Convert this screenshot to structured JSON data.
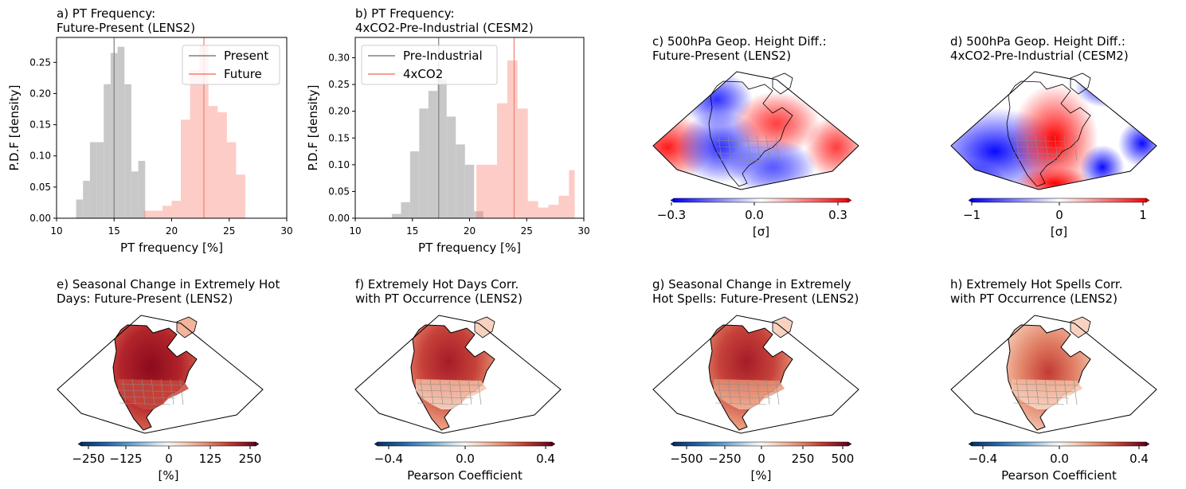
{
  "chart_data": [
    {
      "id": "a",
      "type": "bar",
      "title": "a) PT Frequency:",
      "subtitle": "Future-Present (LENS2)",
      "xlabel": "PT frequency [%]",
      "ylabel": "P.D.F [density]",
      "xlim": [
        10,
        30
      ],
      "ylim": [
        0,
        0.29
      ],
      "xticks": [
        "10",
        "15",
        "20",
        "25",
        "30"
      ],
      "yticks": [
        "0.00",
        "0.05",
        "0.10",
        "0.15",
        "0.20",
        "0.25"
      ],
      "legend": "top-right",
      "series": [
        {
          "name": "Present",
          "color": "#808080",
          "bins": [
            [
              11.7,
              12.3,
              0.03
            ],
            [
              12.3,
              12.9,
              0.06
            ],
            [
              12.9,
              13.5,
              0.122
            ],
            [
              13.5,
              14.1,
              0.122
            ],
            [
              14.1,
              14.7,
              0.215
            ],
            [
              14.7,
              15.3,
              0.265
            ],
            [
              15.3,
              15.9,
              0.275
            ],
            [
              15.9,
              16.5,
              0.215
            ],
            [
              16.5,
              17.1,
              0.075
            ],
            [
              17.1,
              17.7,
              0.092
            ]
          ],
          "line": 15.0
        },
        {
          "name": "Future",
          "color": "#f08070",
          "bins": [
            [
              17.6,
              18.4,
              0.012
            ],
            [
              18.4,
              19.2,
              0.012
            ],
            [
              19.2,
              20.0,
              0.02
            ],
            [
              20.0,
              20.8,
              0.028
            ],
            [
              20.8,
              21.6,
              0.158
            ],
            [
              21.6,
              22.4,
              0.238
            ],
            [
              22.4,
              23.2,
              0.278
            ],
            [
              23.2,
              24.0,
              0.18
            ],
            [
              24.0,
              24.8,
              0.17
            ],
            [
              24.8,
              25.6,
              0.122
            ],
            [
              25.6,
              26.4,
              0.07
            ]
          ],
          "line": 22.8
        }
      ]
    },
    {
      "id": "b",
      "type": "bar",
      "title": "b) PT Frequency:",
      "subtitle": "4xCO2-Pre-Industrial (CESM2)",
      "xlabel": "PT frequency [%]",
      "ylabel": "P.D.F [density]",
      "xlim": [
        10,
        30
      ],
      "ylim": [
        0,
        0.338
      ],
      "xticks": [
        "10",
        "15",
        "20",
        "25",
        "30"
      ],
      "yticks": [
        "0.00",
        "0.05",
        "0.10",
        "0.15",
        "0.20",
        "0.25",
        "0.30"
      ],
      "legend": "top-left",
      "series": [
        {
          "name": "Pre-Industrial",
          "color": "#808080",
          "bins": [
            [
              13.2,
              14.0,
              0.008
            ],
            [
              14.0,
              14.8,
              0.03
            ],
            [
              14.8,
              15.6,
              0.125
            ],
            [
              15.6,
              16.4,
              0.205
            ],
            [
              16.4,
              17.2,
              0.238
            ],
            [
              17.2,
              18.0,
              0.26
            ],
            [
              18.0,
              18.8,
              0.19
            ],
            [
              18.8,
              19.6,
              0.138
            ],
            [
              19.6,
              20.4,
              0.1
            ],
            [
              20.4,
              21.2,
              0.013
            ]
          ],
          "line": 17.3
        },
        {
          "name": "4xCO2",
          "color": "#f08070",
          "bins": [
            [
              20.6,
              21.5,
              0.1
            ],
            [
              21.5,
              22.4,
              0.1
            ],
            [
              22.4,
              23.3,
              0.215
            ],
            [
              23.3,
              24.2,
              0.295
            ],
            [
              24.2,
              25.1,
              0.205
            ],
            [
              25.1,
              26.0,
              0.032
            ],
            [
              26.0,
              26.9,
              0.02
            ],
            [
              26.9,
              27.8,
              0.025
            ],
            [
              27.8,
              28.7,
              0.042
            ],
            [
              28.7,
              29.2,
              0.09
            ]
          ],
          "line": 23.9
        }
      ]
    },
    {
      "id": "c",
      "type": "heatmap",
      "title": "c) 500hPa Geop. Height Diff.:",
      "subtitle": "Future-Present (LENS2)",
      "colorbar": {
        "ticks": [
          "−0.3",
          "0.0",
          "0.3"
        ],
        "label": "[σ]",
        "cmap": "bwr"
      }
    },
    {
      "id": "d",
      "type": "heatmap",
      "title": "d) 500hPa Geop. Height Diff.:",
      "subtitle": "4xCO2-Pre-Industrial (CESM2)",
      "colorbar": {
        "ticks": [
          "−1",
          "0",
          "1"
        ],
        "label": "[σ]",
        "cmap": "bwr"
      }
    },
    {
      "id": "e",
      "type": "heatmap",
      "title": "e) Seasonal Change in Extremely Hot",
      "subtitle": "Days: Future-Present (LENS2)",
      "colorbar": {
        "ticks": [
          "−250",
          "−125",
          "0",
          "125",
          "250"
        ],
        "label": "[%]",
        "cmap": "RdBu_r"
      }
    },
    {
      "id": "f",
      "type": "heatmap",
      "title": "f) Extremely Hot Days Corr.",
      "subtitle": "with PT Occurrence (LENS2)",
      "colorbar": {
        "ticks": [
          "−0.4",
          "0.0",
          "0.4"
        ],
        "label": "Pearson Coefficient",
        "cmap": "RdBu_r"
      }
    },
    {
      "id": "g",
      "type": "heatmap",
      "title": "g) Seasonal Change in Extremely",
      "subtitle": "Hot Spells: Future-Present (LENS2)",
      "colorbar": {
        "ticks": [
          "−500",
          "−250",
          "0",
          "250",
          "500"
        ],
        "label": "[%]",
        "cmap": "RdBu_r"
      }
    },
    {
      "id": "h",
      "type": "heatmap",
      "title": "h) Extremely Hot Spells Corr.",
      "subtitle": "with PT Occurrence (LENS2)",
      "colorbar": {
        "ticks": [
          "−0.4",
          "0.0",
          "0.4"
        ],
        "label": "Pearson Coefficient",
        "cmap": "RdBu_r"
      }
    }
  ]
}
